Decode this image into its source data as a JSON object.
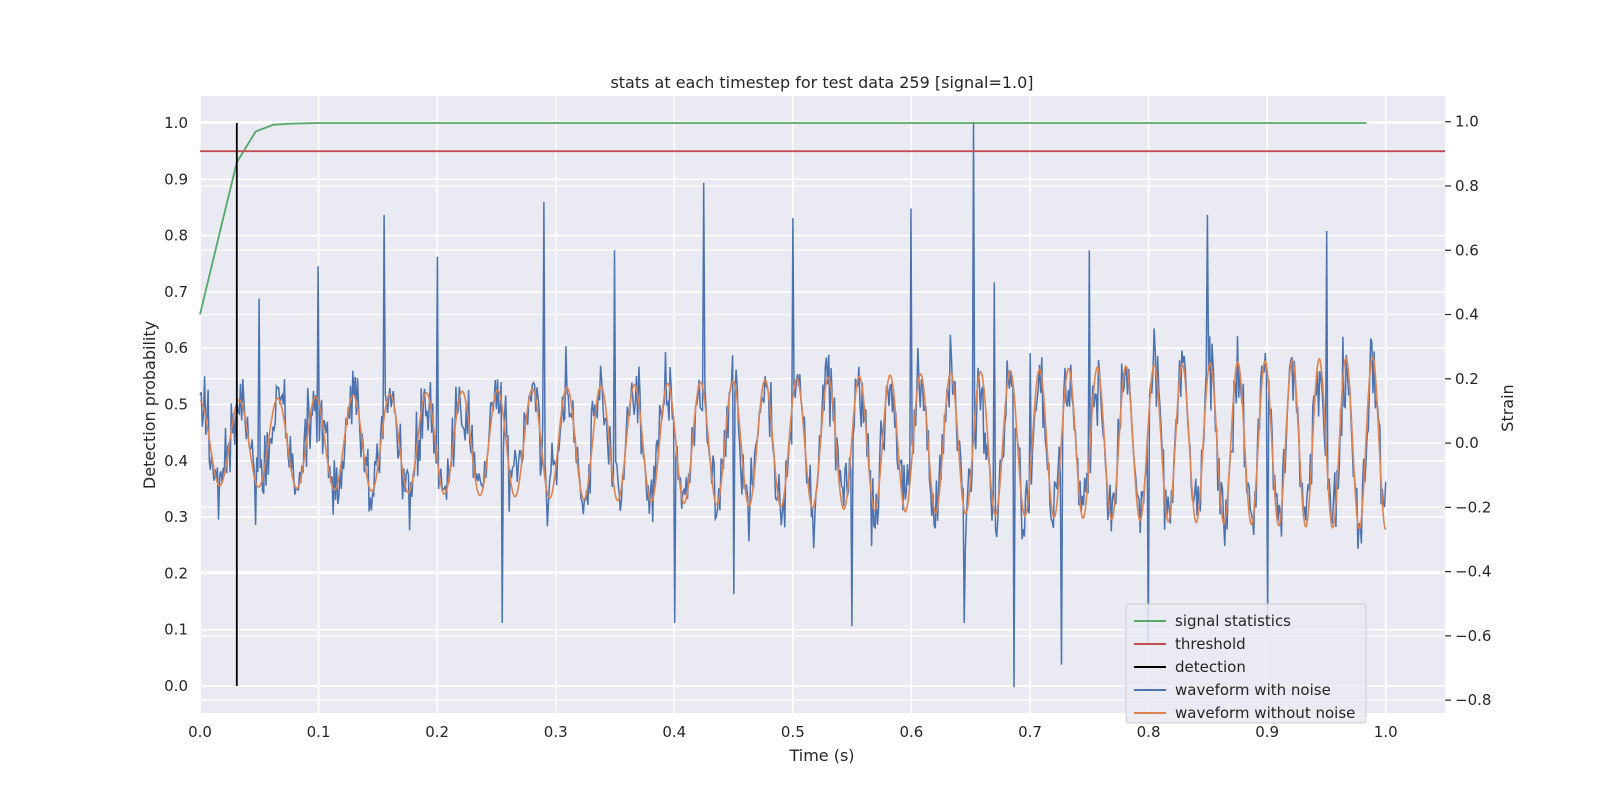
{
  "chart_data": {
    "type": "line",
    "title": "stats at each timestep for test data 259 [signal=1.0]",
    "xlabel": "Time (s)",
    "ylabel": "Detection probability",
    "y2label": "Strain",
    "xlim": [
      0.0,
      1.05
    ],
    "ylim": [
      -0.048,
      1.048
    ],
    "y2lim": [
      -0.84,
      1.08
    ],
    "xticks": [
      0.0,
      0.1,
      0.2,
      0.3,
      0.4,
      0.5,
      0.6,
      0.7,
      0.8,
      0.9,
      1.0
    ],
    "xtick_labels": [
      "0.0",
      "0.1",
      "0.2",
      "0.3",
      "0.4",
      "0.5",
      "0.6",
      "0.7",
      "0.8",
      "0.9",
      "1.0"
    ],
    "yticks": [
      0.0,
      0.1,
      0.2,
      0.3,
      0.4,
      0.5,
      0.6,
      0.7,
      0.8,
      0.9,
      1.0
    ],
    "ytick_labels": [
      "0.0",
      "0.1",
      "0.2",
      "0.3",
      "0.4",
      "0.5",
      "0.6",
      "0.7",
      "0.8",
      "0.9",
      "1.0"
    ],
    "y2ticks": [
      -0.8,
      -0.6,
      -0.4,
      -0.2,
      0.0,
      0.2,
      0.4,
      0.6,
      0.8,
      1.0
    ],
    "y2tick_labels": [
      "−0.8",
      "−0.6",
      "−0.4",
      "−0.2",
      "0.0",
      "0.2",
      "0.4",
      "0.6",
      "0.8",
      "1.0"
    ],
    "grid": true,
    "legend_position": "bottom-right",
    "series": [
      {
        "name": "signal statistics",
        "color": "#55a868",
        "axis": "left",
        "x": [
          0.0,
          0.016,
          0.031,
          0.047,
          0.062,
          0.078,
          0.1,
          0.2,
          0.4,
          0.6,
          0.8,
          0.984
        ],
        "y": [
          0.66,
          0.8,
          0.93,
          0.985,
          0.997,
          0.999,
          1.0,
          1.0,
          1.0,
          1.0,
          1.0,
          1.0
        ]
      },
      {
        "name": "threshold",
        "color": "#c44e52",
        "axis": "left",
        "x": [
          0.0,
          1.05
        ],
        "y": [
          0.95,
          0.95
        ]
      },
      {
        "name": "detection",
        "color": "#000000",
        "axis": "left",
        "x": [
          0.031,
          0.031
        ],
        "y": [
          0.0,
          1.0
        ]
      },
      {
        "name": "waveform with noise",
        "color": "#4c72b0",
        "axis": "right",
        "x": [
          0.0,
          0.024,
          0.05,
          0.1,
          0.155,
          0.2,
          0.255,
          0.29,
          0.35,
          0.4,
          0.425,
          0.45,
          0.5,
          0.55,
          0.6,
          0.645,
          0.652,
          0.67,
          0.687,
          0.7,
          0.727,
          0.75,
          0.8,
          0.85,
          0.9,
          0.95,
          1.0
        ],
        "y": [
          0.15,
          0.0,
          0.45,
          0.55,
          0.71,
          0.58,
          -0.56,
          0.75,
          0.6,
          -0.56,
          0.81,
          -0.47,
          0.7,
          -0.57,
          0.73,
          -0.56,
          1.0,
          0.5,
          -0.76,
          0.28,
          -0.69,
          0.6,
          -0.62,
          0.71,
          -0.58,
          0.66,
          -0.12
        ]
      },
      {
        "name": "waveform without noise",
        "color": "#dd8452",
        "axis": "right",
        "amplitude": [
          0.13,
          0.27
        ],
        "frequency_hz": [
          30,
          45
        ]
      }
    ]
  }
}
